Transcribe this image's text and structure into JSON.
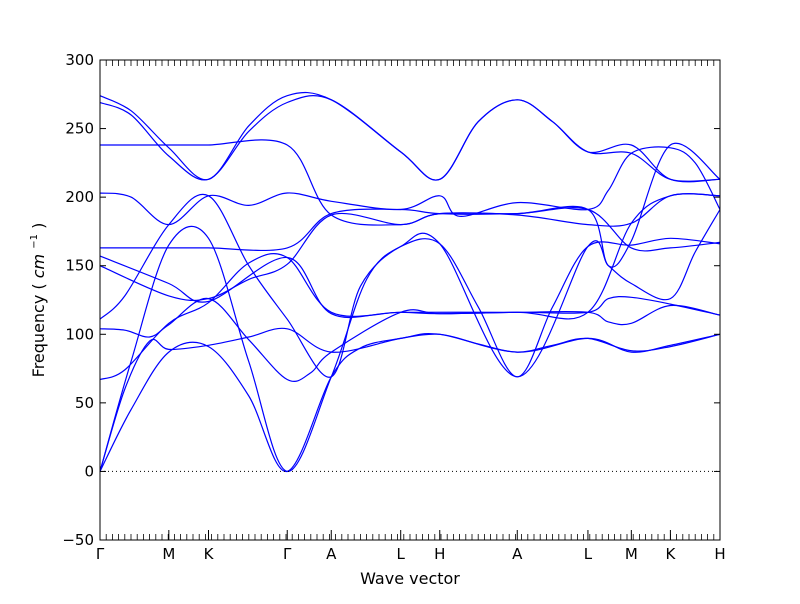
{
  "colors": {
    "band": "#0000ff",
    "axis": "#000000",
    "zero_line": "#000000",
    "background": "#ffffff"
  },
  "chart_data": {
    "type": "line",
    "title": "",
    "xlabel": "Wave vector",
    "ylabel": "Frequency",
    "ylabel_unit": "cm",
    "ylabel_unit_exponent": "−1",
    "ylim": [
      -50,
      300
    ],
    "yticks": [
      -50,
      0,
      50,
      100,
      150,
      200,
      250,
      300
    ],
    "ytick_labels": [
      "−50",
      "0",
      "50",
      "100",
      "150",
      "200",
      "250",
      "300"
    ],
    "xlim": [
      0,
      1
    ],
    "grid": false,
    "zero_line": true,
    "high_symmetry_points": [
      {
        "label": "Γ",
        "x": 0.0
      },
      {
        "label": "M",
        "x": 0.111
      },
      {
        "label": "K",
        "x": 0.175
      },
      {
        "label": "Γ",
        "x": 0.302
      },
      {
        "label": "A",
        "x": 0.373
      },
      {
        "label": "L",
        "x": 0.485
      },
      {
        "label": "H",
        "x": 0.548
      },
      {
        "label": "A",
        "x": 0.673
      },
      {
        "label": "L",
        "x": 0.787
      },
      {
        "label": "M",
        "x": 0.857
      },
      {
        "label": "K",
        "x": 0.92
      },
      {
        "label": "H",
        "x": 1.0
      }
    ],
    "series": [
      {
        "values": [
          [
            0.0,
            0
          ],
          [
            0.05,
            45
          ],
          [
            0.111,
            87
          ],
          [
            0.175,
            91
          ],
          [
            0.24,
            55
          ],
          [
            0.302,
            0
          ],
          [
            0.373,
            69
          ],
          [
            0.42,
            90
          ],
          [
            0.485,
            97
          ],
          [
            0.548,
            100
          ],
          [
            0.61,
            93
          ],
          [
            0.673,
            87
          ],
          [
            0.73,
            92
          ],
          [
            0.787,
            97
          ],
          [
            0.857,
            88
          ],
          [
            0.92,
            91
          ],
          [
            1.0,
            100
          ]
        ]
      },
      {
        "values": [
          [
            0.0,
            0
          ],
          [
            0.04,
            60
          ],
          [
            0.08,
            95
          ],
          [
            0.111,
            89
          ],
          [
            0.175,
            92
          ],
          [
            0.24,
            98
          ],
          [
            0.302,
            104
          ],
          [
            0.373,
            87
          ],
          [
            0.485,
            97
          ],
          [
            0.548,
            100
          ],
          [
            0.673,
            87
          ],
          [
            0.787,
            97
          ],
          [
            0.857,
            87
          ],
          [
            0.92,
            92
          ],
          [
            1.0,
            100
          ]
        ]
      },
      {
        "values": [
          [
            0.0,
            0
          ],
          [
            0.05,
            80
          ],
          [
            0.111,
            165
          ],
          [
            0.175,
            170
          ],
          [
            0.24,
            80
          ],
          [
            0.302,
            0
          ],
          [
            0.373,
            69
          ],
          [
            0.43,
            140
          ],
          [
            0.485,
            164
          ],
          [
            0.548,
            166
          ],
          [
            0.61,
            120
          ],
          [
            0.673,
            69
          ],
          [
            0.73,
            120
          ],
          [
            0.787,
            164
          ],
          [
            0.857,
            165
          ],
          [
            0.92,
            170
          ],
          [
            1.0,
            166
          ]
        ]
      },
      {
        "values": [
          [
            0.0,
            67
          ],
          [
            0.04,
            74
          ],
          [
            0.111,
            108
          ],
          [
            0.175,
            123
          ],
          [
            0.24,
            152
          ],
          [
            0.302,
            156
          ],
          [
            0.373,
            116
          ],
          [
            0.485,
            116
          ],
          [
            0.548,
            115
          ],
          [
            0.673,
            116
          ],
          [
            0.787,
            116
          ],
          [
            0.82,
            109
          ],
          [
            0.857,
            108
          ],
          [
            0.92,
            121
          ],
          [
            1.0,
            114
          ]
        ]
      },
      {
        "values": [
          [
            0.0,
            104
          ],
          [
            0.04,
            103
          ],
          [
            0.08,
            98
          ],
          [
            0.111,
            107
          ],
          [
            0.175,
            126
          ],
          [
            0.24,
            96
          ],
          [
            0.302,
            67
          ],
          [
            0.34,
            72
          ],
          [
            0.373,
            87
          ],
          [
            0.485,
            116
          ],
          [
            0.548,
            115
          ],
          [
            0.673,
            116
          ],
          [
            0.787,
            116
          ],
          [
            0.82,
            126
          ],
          [
            0.857,
            127
          ],
          [
            0.92,
            122
          ],
          [
            1.0,
            114
          ]
        ]
      },
      {
        "values": [
          [
            0.0,
            111
          ],
          [
            0.04,
            128
          ],
          [
            0.111,
            180
          ],
          [
            0.175,
            201
          ],
          [
            0.24,
            150
          ],
          [
            0.302,
            111
          ],
          [
            0.373,
            69
          ],
          [
            0.42,
            135
          ],
          [
            0.485,
            164
          ],
          [
            0.548,
            166
          ],
          [
            0.673,
            69
          ],
          [
            0.787,
            164
          ],
          [
            0.82,
            150
          ],
          [
            0.857,
            137
          ],
          [
            0.92,
            126
          ],
          [
            0.96,
            160
          ],
          [
            1.0,
            191
          ]
        ]
      },
      {
        "values": [
          [
            0.0,
            150
          ],
          [
            0.111,
            128
          ],
          [
            0.175,
            126
          ],
          [
            0.24,
            140
          ],
          [
            0.302,
            151
          ],
          [
            0.373,
            187
          ],
          [
            0.485,
            180
          ],
          [
            0.548,
            188
          ],
          [
            0.673,
            187
          ],
          [
            0.787,
            180
          ],
          [
            0.857,
            181
          ],
          [
            0.92,
            201
          ],
          [
            1.0,
            201
          ]
        ]
      },
      {
        "values": [
          [
            0.0,
            157
          ],
          [
            0.111,
            137
          ],
          [
            0.175,
            124
          ],
          [
            0.302,
            156
          ],
          [
            0.373,
            115
          ],
          [
            0.485,
            116
          ],
          [
            0.673,
            116
          ],
          [
            0.787,
            116
          ],
          [
            0.857,
            181
          ],
          [
            0.92,
            201
          ],
          [
            1.0,
            201
          ]
        ]
      },
      {
        "values": [
          [
            0.0,
            163
          ],
          [
            0.111,
            163
          ],
          [
            0.175,
            163
          ],
          [
            0.302,
            163
          ],
          [
            0.373,
            188
          ],
          [
            0.485,
            191
          ],
          [
            0.548,
            188
          ],
          [
            0.673,
            188
          ],
          [
            0.787,
            191
          ],
          [
            0.857,
            163
          ],
          [
            0.92,
            163
          ],
          [
            1.0,
            167
          ]
        ]
      },
      {
        "values": [
          [
            0.0,
            203
          ],
          [
            0.05,
            200
          ],
          [
            0.111,
            180
          ],
          [
            0.175,
            201
          ],
          [
            0.24,
            194
          ],
          [
            0.302,
            203
          ],
          [
            0.373,
            197
          ],
          [
            0.485,
            191
          ],
          [
            0.548,
            201
          ],
          [
            0.58,
            186
          ],
          [
            0.673,
            196
          ],
          [
            0.787,
            191
          ],
          [
            0.82,
            205
          ],
          [
            0.857,
            232
          ],
          [
            0.92,
            236
          ],
          [
            0.96,
            225
          ],
          [
            1.0,
            191
          ]
        ]
      },
      {
        "values": [
          [
            0.0,
            238
          ],
          [
            0.111,
            238
          ],
          [
            0.175,
            238
          ],
          [
            0.302,
            238
          ],
          [
            0.373,
            187
          ],
          [
            0.485,
            180
          ],
          [
            0.548,
            188
          ],
          [
            0.673,
            188
          ],
          [
            0.787,
            191
          ],
          [
            0.82,
            150
          ],
          [
            0.857,
            168
          ],
          [
            0.92,
            238
          ],
          [
            1.0,
            213
          ]
        ]
      },
      {
        "values": [
          [
            0.0,
            269
          ],
          [
            0.05,
            260
          ],
          [
            0.111,
            230
          ],
          [
            0.175,
            213
          ],
          [
            0.24,
            248
          ],
          [
            0.302,
            269
          ],
          [
            0.373,
            271
          ],
          [
            0.485,
            233
          ],
          [
            0.548,
            213
          ],
          [
            0.61,
            255
          ],
          [
            0.673,
            271
          ],
          [
            0.73,
            255
          ],
          [
            0.787,
            233
          ],
          [
            0.857,
            238
          ],
          [
            0.92,
            213
          ],
          [
            1.0,
            213
          ]
        ]
      },
      {
        "values": [
          [
            0.0,
            274
          ],
          [
            0.05,
            263
          ],
          [
            0.111,
            236
          ],
          [
            0.175,
            213
          ],
          [
            0.24,
            252
          ],
          [
            0.302,
            274
          ],
          [
            0.373,
            271
          ],
          [
            0.485,
            233
          ],
          [
            0.548,
            213
          ],
          [
            0.61,
            255
          ],
          [
            0.673,
            271
          ],
          [
            0.73,
            255
          ],
          [
            0.787,
            233
          ],
          [
            0.857,
            232
          ],
          [
            0.92,
            213
          ],
          [
            1.0,
            213
          ]
        ]
      }
    ]
  }
}
